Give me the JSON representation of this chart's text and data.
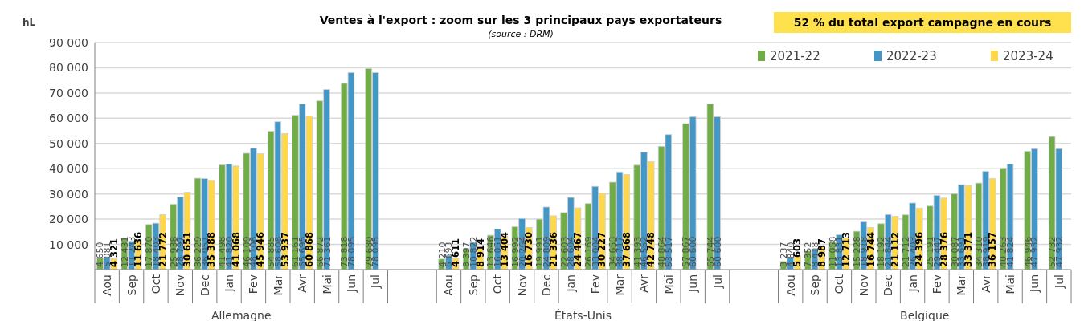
{
  "chart_data": {
    "type": "bar",
    "title": "Ventes à l'export : zoom sur les  3 principaux pays exportateurs",
    "subtitle": "(source : DRM)",
    "ylabel": "hL",
    "annotations": [
      "52 % du total export campagne en cours",
      "Allemagne",
      "États-Unis",
      "Belgique"
    ],
    "categories": [
      "Aou",
      "Sep",
      "Oct",
      "Nov",
      "Dec",
      "Jan",
      "Fev",
      "Mar",
      "Avr",
      "Mai",
      "Jun",
      "Jul",
      "Aou",
      "Sep",
      "Oct",
      "Nov",
      "Dec",
      "Jan",
      "Fev",
      "Mar",
      "Avr",
      "Mai",
      "Jun",
      "Jul",
      "Aou",
      "Sep",
      "Oct",
      "Nov",
      "Dec",
      "Jan",
      "Fev",
      "Mar",
      "Avr",
      "Mai",
      "Jun",
      "Jul"
    ],
    "series": [
      {
        "name": "2021-22",
        "color": "#70ad47",
        "values": [
          4650,
          12431,
          17870,
          25938,
          36229,
          41498,
          46109,
          54885,
          61161,
          66872,
          73818,
          79680,
          4210,
          8397,
          13646,
          16992,
          19991,
          22603,
          26169,
          34653,
          41393,
          48864,
          57867,
          65744,
          3237,
          7352,
          11058,
          15228,
          18192,
          21712,
          25191,
          30087,
          34310,
          40263,
          46946,
          52732
        ]
      },
      {
        "name": "2022-23",
        "color": "#4397c7",
        "values": [
          5081,
          11243,
          18403,
          28797,
          36051,
          41820,
          48106,
          58608,
          65695,
          71361,
          78095,
          78095,
          5693,
          10822,
          16051,
          20264,
          24809,
          28604,
          33004,
          38717,
          46552,
          53517,
          60600,
          60600,
          4840,
          8418,
          13831,
          18918,
          21844,
          26403,
          29447,
          33691,
          38919,
          41824,
          47932,
          47932
        ]
      },
      {
        "name": "2023-24",
        "color": "#ffd84a",
        "values": [
          4321,
          11636,
          21772,
          30651,
          35388,
          41068,
          45946,
          53937,
          60868,
          null,
          null,
          null,
          4611,
          8914,
          13404,
          16730,
          21336,
          24467,
          30227,
          37668,
          42748,
          null,
          null,
          null,
          5603,
          8987,
          12713,
          16744,
          21112,
          24396,
          28376,
          33371,
          36157,
          null,
          null,
          null
        ]
      }
    ],
    "ylim": [
      0,
      90000
    ],
    "yticks": [
      {
        "value": 10000,
        "label": "10 000"
      },
      {
        "value": 20000,
        "label": "20 000"
      },
      {
        "value": 30000,
        "label": "30 000"
      },
      {
        "value": 40000,
        "label": "40 000"
      },
      {
        "value": 50000,
        "label": "50 000"
      },
      {
        "value": 60000,
        "label": "60 000"
      },
      {
        "value": 70000,
        "label": "70 000"
      },
      {
        "value": 80000,
        "label": "80 000"
      },
      {
        "value": 90000,
        "label": "90 000"
      }
    ],
    "grid": "y",
    "legend": "top right",
    "data_labels": true
  }
}
